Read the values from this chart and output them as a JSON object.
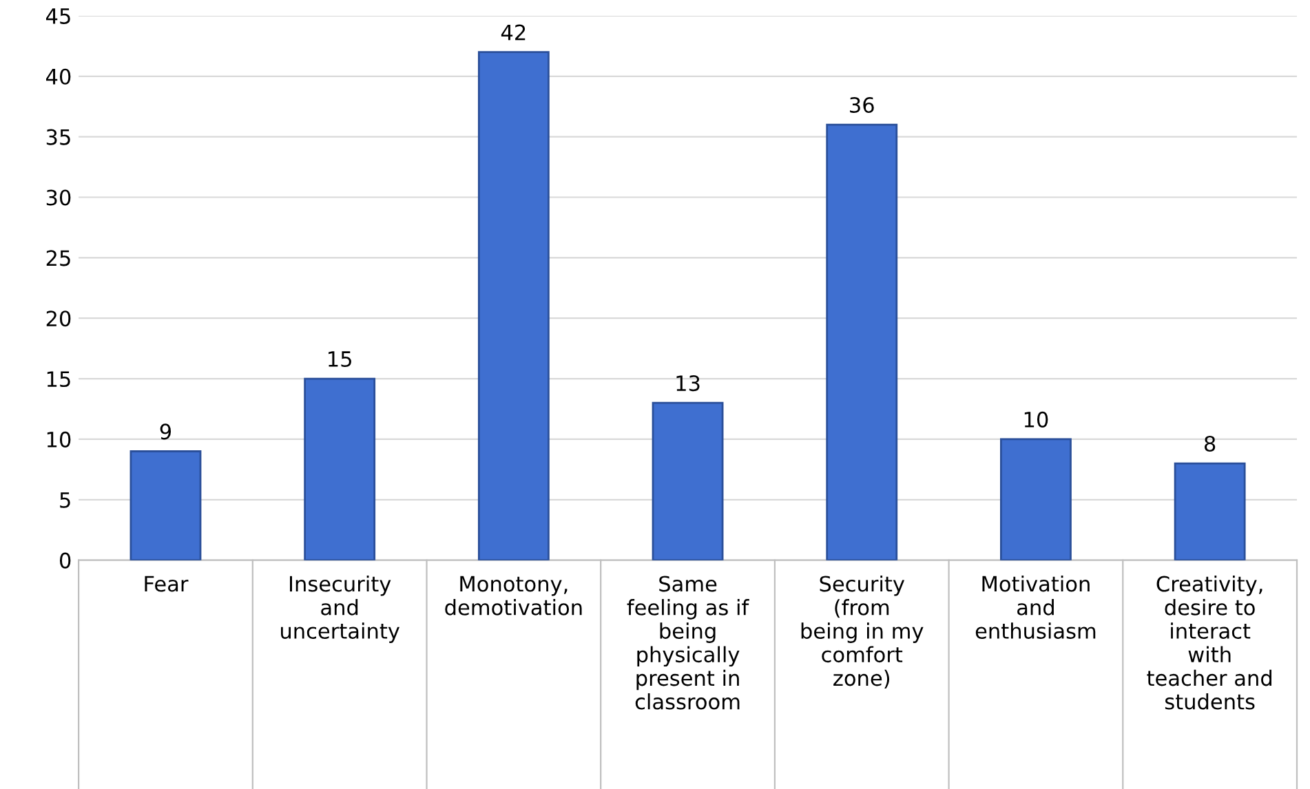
{
  "chart_data": {
    "type": "bar",
    "categories": [
      "Fear",
      "Insecurity\nand\nuncertainty",
      "Monotony,\ndemotivation",
      "Same\nfeeling as if\nbeing\nphysically\npresent in\nclassroom",
      "Security\n(from\nbeing in my\ncomfort\nzone)",
      "Motivation\nand\nenthusiasm",
      "Creativity,\ndesire to\ninteract\nwith\nteacher and\nstudents"
    ],
    "values": [
      9,
      15,
      42,
      13,
      36,
      10,
      8
    ],
    "color": "#3f6fd0",
    "ylim": [
      0,
      45
    ],
    "yticks": [
      0,
      5,
      10,
      15,
      20,
      25,
      30,
      35,
      40,
      45
    ],
    "grid": "y",
    "data_labels": true,
    "legend": false
  }
}
